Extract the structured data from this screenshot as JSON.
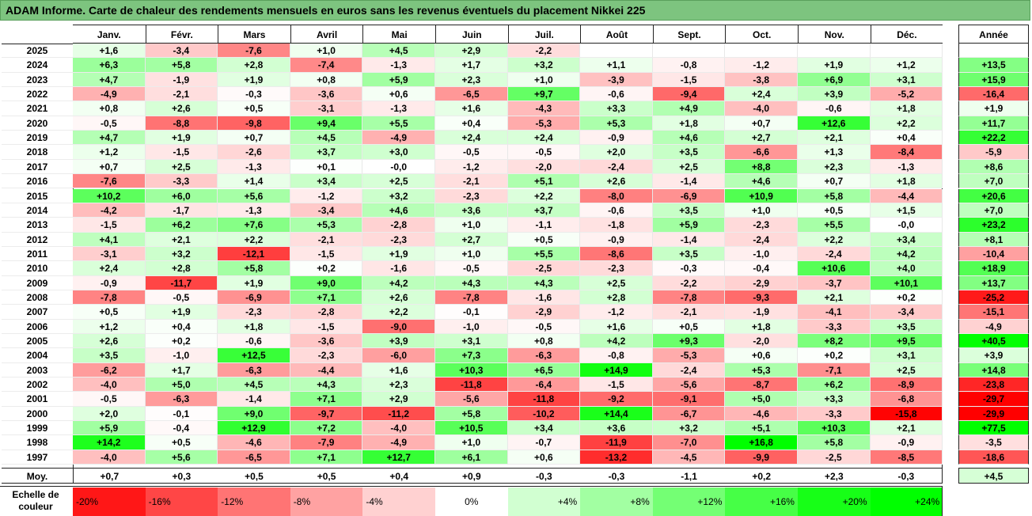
{
  "chart_data": {
    "type": "heatmap",
    "title": "ADAM Informe. Carte de chaleur des rendements mensuels en euros sans les revenus éventuels du placement Nikkei 225",
    "months": [
      "Janv.",
      "Févr.",
      "Mars",
      "Avril",
      "Mai",
      "Juin",
      "Juil.",
      "Août",
      "Sept.",
      "Oct.",
      "Nov.",
      "Déc."
    ],
    "year_header": "Année",
    "rows": [
      {
        "year": "2025",
        "values": [
          "+1,6",
          "-3,4",
          "-7,6",
          "+1,0",
          "+4,5",
          "+2,9",
          "-2,2",
          "",
          "",
          "",
          "",
          ""
        ],
        "annual": ""
      },
      {
        "year": "2024",
        "values": [
          "+6,3",
          "+5,8",
          "+2,8",
          "-7,4",
          "-1,3",
          "+1,7",
          "+3,2",
          "+1,1",
          "-0,8",
          "-1,2",
          "+1,9",
          "+1,2"
        ],
        "annual": "+13,5"
      },
      {
        "year": "2023",
        "values": [
          "+4,7",
          "-1,9",
          "+1,9",
          "+0,8",
          "+5,9",
          "+2,3",
          "+1,0",
          "-3,9",
          "-1,5",
          "-3,8",
          "+6,9",
          "+3,1"
        ],
        "annual": "+15,9"
      },
      {
        "year": "2022",
        "values": [
          "-4,9",
          "-2,1",
          "-0,3",
          "-3,6",
          "+0,6",
          "-6,5",
          "+9,7",
          "-0,6",
          "-9,4",
          "+2,4",
          "+3,9",
          "-5,2"
        ],
        "annual": "-16,4"
      },
      {
        "year": "2021",
        "values": [
          "+0,8",
          "+2,6",
          "+0,5",
          "-3,1",
          "-1,3",
          "+1,6",
          "-4,3",
          "+3,3",
          "+4,9",
          "-4,0",
          "-0,6",
          "+1,8"
        ],
        "annual": "+1,9"
      },
      {
        "year": "2020",
        "values": [
          "-0,5",
          "-8,8",
          "-9,8",
          "+9,4",
          "+5,5",
          "+0,4",
          "-5,3",
          "+5,3",
          "+1,8",
          "+0,7",
          "+12,6",
          "+2,2"
        ],
        "annual": "+11,7"
      },
      {
        "year": "2019",
        "values": [
          "+4,7",
          "+1,9",
          "+0,7",
          "+4,5",
          "-4,9",
          "+2,4",
          "+2,4",
          "-0,9",
          "+4,6",
          "+2,7",
          "+2,1",
          "+0,4"
        ],
        "annual": "+22,2"
      },
      {
        "year": "2018",
        "values": [
          "+1,2",
          "-1,5",
          "-2,6",
          "+3,7",
          "+3,0",
          "-0,5",
          "-0,5",
          "+2,0",
          "+3,5",
          "-6,6",
          "+1,3",
          "-8,4"
        ],
        "annual": "-5,9"
      },
      {
        "year": "2017",
        "values": [
          "+0,7",
          "+2,5",
          "-1,3",
          "+0,1",
          "-0,0",
          "-1,2",
          "-2,0",
          "-2,4",
          "+2,5",
          "+8,8",
          "+2,3",
          "-1,3"
        ],
        "annual": "+8,6"
      },
      {
        "year": "2016",
        "values": [
          "-7,6",
          "-3,3",
          "+1,4",
          "+3,4",
          "+2,5",
          "-2,1",
          "+5,1",
          "+2,6",
          "-1,4",
          "+4,6",
          "+0,7",
          "+1,8"
        ],
        "annual": "+7,0"
      },
      {
        "year": "2015",
        "values": [
          "+10,2",
          "+6,0",
          "+5,6",
          "-1,2",
          "+3,2",
          "-2,3",
          "+2,2",
          "-8,0",
          "-6,9",
          "+10,9",
          "+5,8",
          "-4,4"
        ],
        "annual": "+20,6"
      },
      {
        "year": "2014",
        "values": [
          "-4,2",
          "-1,7",
          "-1,3",
          "-3,4",
          "+4,6",
          "+3,6",
          "+3,7",
          "-0,6",
          "+3,5",
          "+1,0",
          "+0,5",
          "+1,5"
        ],
        "annual": "+7,0"
      },
      {
        "year": "2013",
        "values": [
          "-1,5",
          "+6,2",
          "+7,6",
          "+5,3",
          "-2,8",
          "+1,0",
          "-1,1",
          "-1,8",
          "+5,9",
          "-2,3",
          "+5,5",
          "-0,0"
        ],
        "annual": "+23,2"
      },
      {
        "year": "2012",
        "values": [
          "+4,1",
          "+2,1",
          "+2,2",
          "-2,1",
          "-2,3",
          "+2,7",
          "+0,5",
          "-0,9",
          "-1,4",
          "-2,4",
          "+2,2",
          "+3,4"
        ],
        "annual": "+8,1"
      },
      {
        "year": "2011",
        "values": [
          "-3,1",
          "+3,2",
          "-12,1",
          "-1,5",
          "+1,9",
          "+1,0",
          "+5,5",
          "-8,6",
          "+3,5",
          "-1,0",
          "-2,4",
          "+4,2"
        ],
        "annual": "-10,4"
      },
      {
        "year": "2010",
        "values": [
          "+2,4",
          "+2,8",
          "+5,8",
          "+0,2",
          "-1,6",
          "-0,5",
          "-2,5",
          "-2,3",
          "-0,3",
          "-0,4",
          "+10,6",
          "+4,0"
        ],
        "annual": "+18,9"
      },
      {
        "year": "2009",
        "values": [
          "-0,9",
          "-11,7",
          "+1,9",
          "+9,0",
          "+4,2",
          "+4,3",
          "+4,3",
          "+2,5",
          "-2,2",
          "-2,9",
          "-3,7",
          "+10,1"
        ],
        "annual": "+13,7"
      },
      {
        "year": "2008",
        "values": [
          "-7,8",
          "-0,5",
          "-6,9",
          "+7,1",
          "+2,6",
          "-7,8",
          "-1,6",
          "+2,8",
          "-7,8",
          "-9,3",
          "+2,1",
          "+0,2"
        ],
        "annual": "-25,2"
      },
      {
        "year": "2007",
        "values": [
          "+0,5",
          "+1,9",
          "-2,3",
          "-2,8",
          "+2,2",
          "-0,1",
          "-2,9",
          "-1,2",
          "-2,1",
          "-1,9",
          "-4,1",
          "-3,4"
        ],
        "annual": "-15,1"
      },
      {
        "year": "2006",
        "values": [
          "+1,2",
          "+0,4",
          "+1,8",
          "-1,5",
          "-9,0",
          "-1,0",
          "-0,5",
          "+1,6",
          "+0,5",
          "+1,8",
          "-3,3",
          "+3,5"
        ],
        "annual": "-4,9"
      },
      {
        "year": "2005",
        "values": [
          "+2,6",
          "+0,2",
          "-0,6",
          "-3,6",
          "+3,9",
          "+3,1",
          "+0,8",
          "+4,2",
          "+9,3",
          "-2,0",
          "+8,2",
          "+9,5"
        ],
        "annual": "+40,5"
      },
      {
        "year": "2004",
        "values": [
          "+3,5",
          "-1,0",
          "+12,5",
          "-2,3",
          "-6,0",
          "+7,3",
          "-6,3",
          "-0,8",
          "-5,3",
          "+0,6",
          "+0,2",
          "+3,1"
        ],
        "annual": "+3,9"
      },
      {
        "year": "2003",
        "values": [
          "-6,2",
          "+1,7",
          "-6,3",
          "-4,4",
          "+1,6",
          "+10,3",
          "+6,5",
          "+14,9",
          "-2,4",
          "+5,3",
          "-7,1",
          "+2,5"
        ],
        "annual": "+14,8"
      },
      {
        "year": "2002",
        "values": [
          "-4,0",
          "+5,0",
          "+4,5",
          "+4,3",
          "+2,3",
          "-11,8",
          "-6,4",
          "-1,5",
          "-5,6",
          "-8,7",
          "+6,2",
          "-8,9"
        ],
        "annual": "-23,8"
      },
      {
        "year": "2001",
        "values": [
          "-0,5",
          "-6,3",
          "-1,4",
          "+7,1",
          "+2,9",
          "-5,6",
          "-11,8",
          "-9,2",
          "-9,1",
          "+5,0",
          "+3,3",
          "-6,8"
        ],
        "annual": "-29,7"
      },
      {
        "year": "2000",
        "values": [
          "+2,0",
          "-0,1",
          "+9,0",
          "-9,7",
          "-11,2",
          "+5,8",
          "-10,2",
          "+14,4",
          "-6,7",
          "-4,6",
          "-3,3",
          "-15,8"
        ],
        "annual": "-29,9"
      },
      {
        "year": "1999",
        "values": [
          "+5,9",
          "-0,4",
          "+12,9",
          "+7,2",
          "-4,0",
          "+10,5",
          "+3,4",
          "+3,6",
          "+3,2",
          "+5,1",
          "+10,3",
          "+2,1"
        ],
        "annual": "+77,5"
      },
      {
        "year": "1998",
        "values": [
          "+14,2",
          "+0,5",
          "-4,6",
          "-7,9",
          "-4,9",
          "+1,0",
          "-0,7",
          "-11,9",
          "-7,0",
          "+16,8",
          "+5,8",
          "-0,9"
        ],
        "annual": "-3,5"
      },
      {
        "year": "1997",
        "values": [
          "-4,0",
          "+5,6",
          "-6,5",
          "+7,1",
          "+12,7",
          "+6,1",
          "+0,6",
          "-13,2",
          "-4,5",
          "-9,9",
          "-2,5",
          "-8,5"
        ],
        "annual": "-18,6"
      }
    ],
    "average": {
      "label": "Moy.",
      "values": [
        "+0,7",
        "+0,3",
        "+0,5",
        "+0,5",
        "+0,4",
        "+0,9",
        "-0,3",
        "-0,3",
        "-1,1",
        "+0,2",
        "+2,3",
        "-0,3"
      ],
      "annual": "+4,5"
    },
    "legend": {
      "label_line1": "Echelle de",
      "label_line2": "couleur",
      "steps": [
        "-20%",
        "-16%",
        "-12%",
        "-8%",
        "-4%",
        "0%",
        "+4%",
        "+8%",
        "+12%",
        "+16%",
        "+20%",
        "+24%"
      ],
      "step_values": [
        -20,
        -16,
        -12,
        -8,
        -4,
        0,
        4,
        8,
        12,
        16,
        20,
        24
      ]
    },
    "colors": {
      "negative_max": "#ff0000",
      "positive_max": "#00ff00",
      "neutral": "#ffffff",
      "title_bg": "#7dc47f"
    }
  }
}
